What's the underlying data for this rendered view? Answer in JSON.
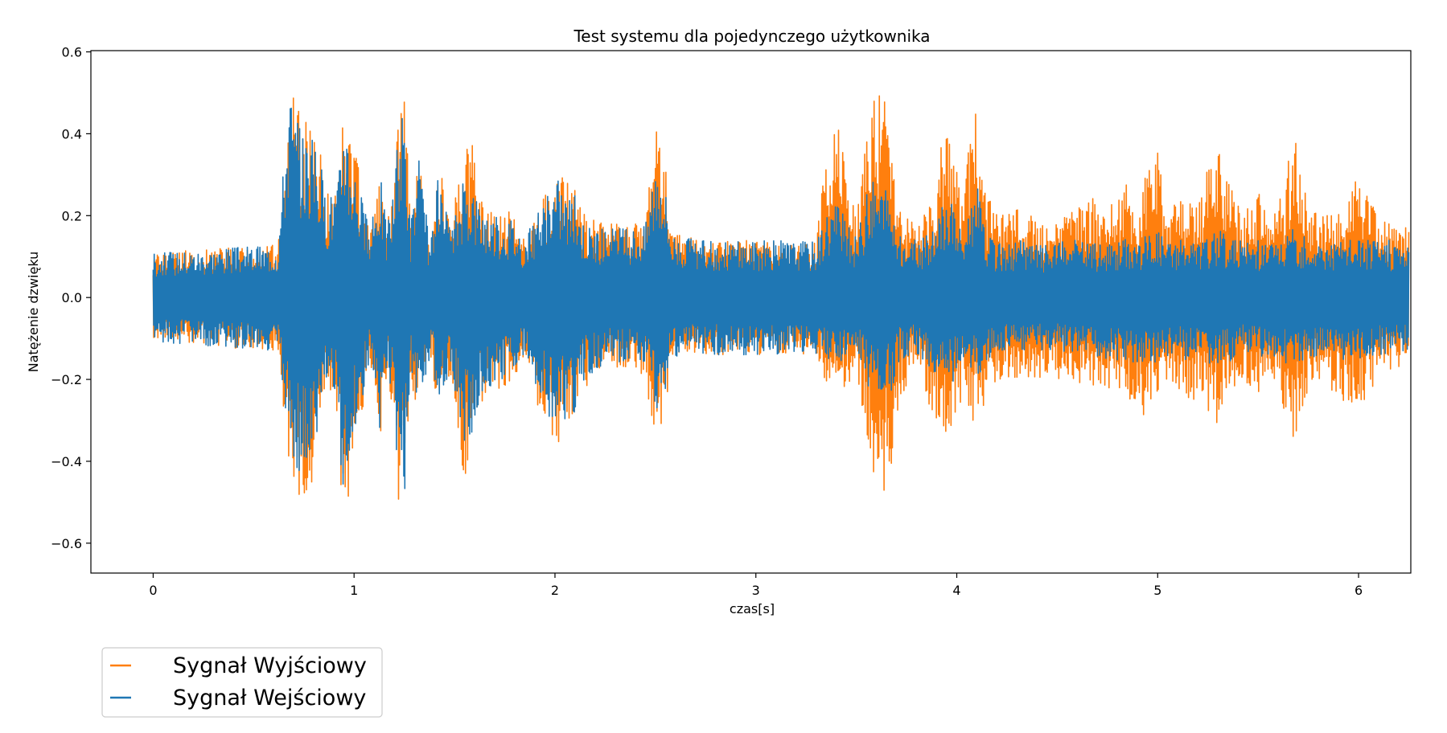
{
  "chart_data": {
    "type": "line",
    "title": "Test systemu dla pojedynczego użytkownika",
    "xlabel": "czas[s]",
    "ylabel": "Natężenie dzwięku",
    "xlim": [
      -0.31,
      6.26
    ],
    "ylim": [
      -0.673,
      0.603
    ],
    "xticks": [
      0,
      1,
      2,
      3,
      4,
      5,
      6
    ],
    "xtick_labels": [
      "0",
      "1",
      "2",
      "3",
      "4",
      "5",
      "6"
    ],
    "yticks": [
      -0.6,
      -0.4,
      -0.2,
      0.0,
      0.2,
      0.4,
      0.6
    ],
    "ytick_labels": [
      "−0.6",
      "−0.4",
      "−0.2",
      "0.0",
      "0.2",
      "0.4",
      "0.6"
    ],
    "grid": false,
    "legend_position": "lower-left, outside plot",
    "legend": [
      "Sygnał Wyjściowy",
      "Sygnał Wejściowy"
    ],
    "series": [
      {
        "name": "Sygnał Wyjściowy",
        "color": "#ff7f0e",
        "envelope_time": [
          0.0,
          0.3,
          0.62,
          0.68,
          0.7,
          0.74,
          0.78,
          0.82,
          0.86,
          0.92,
          0.95,
          0.98,
          1.02,
          1.08,
          1.13,
          1.16,
          1.19,
          1.22,
          1.25,
          1.28,
          1.32,
          1.38,
          1.42,
          1.48,
          1.55,
          1.58,
          1.62,
          1.7,
          1.78,
          1.85,
          1.95,
          2.02,
          2.05,
          2.1,
          2.15,
          2.25,
          2.35,
          2.45,
          2.5,
          2.53,
          2.58,
          2.7,
          2.9,
          3.1,
          3.3,
          3.36,
          3.4,
          3.45,
          3.5,
          3.55,
          3.58,
          3.6,
          3.63,
          3.67,
          3.72,
          3.8,
          3.88,
          3.92,
          3.97,
          4.0,
          4.03,
          4.07,
          4.1,
          4.15,
          4.22,
          4.3,
          4.45,
          4.55,
          4.65,
          4.75,
          4.85,
          4.9,
          4.95,
          5.0,
          5.05,
          5.1,
          5.2,
          5.26,
          5.3,
          5.35,
          5.42,
          5.5,
          5.55,
          5.6,
          5.64,
          5.68,
          5.72,
          5.8,
          5.9,
          6.0,
          6.1,
          6.2,
          6.25
        ],
        "envelope_max": [
          0.11,
          0.12,
          0.13,
          0.45,
          0.5,
          0.48,
          0.44,
          0.4,
          0.25,
          0.28,
          0.54,
          0.4,
          0.35,
          0.15,
          0.33,
          0.18,
          0.25,
          0.42,
          0.55,
          0.18,
          0.35,
          0.13,
          0.34,
          0.18,
          0.36,
          0.45,
          0.25,
          0.2,
          0.22,
          0.15,
          0.25,
          0.32,
          0.28,
          0.28,
          0.2,
          0.18,
          0.18,
          0.2,
          0.43,
          0.45,
          0.16,
          0.15,
          0.14,
          0.14,
          0.14,
          0.42,
          0.48,
          0.32,
          0.2,
          0.4,
          0.52,
          0.5,
          0.5,
          0.42,
          0.22,
          0.18,
          0.23,
          0.4,
          0.48,
          0.33,
          0.22,
          0.42,
          0.5,
          0.25,
          0.2,
          0.22,
          0.18,
          0.2,
          0.25,
          0.22,
          0.3,
          0.2,
          0.35,
          0.37,
          0.2,
          0.25,
          0.22,
          0.35,
          0.43,
          0.3,
          0.2,
          0.26,
          0.2,
          0.25,
          0.3,
          0.43,
          0.28,
          0.2,
          0.22,
          0.3,
          0.2,
          0.18,
          0.17
        ],
        "envelope_min": [
          -0.11,
          -0.12,
          -0.13,
          -0.42,
          -0.47,
          -0.5,
          -0.47,
          -0.4,
          -0.2,
          -0.3,
          -0.62,
          -0.45,
          -0.35,
          -0.15,
          -0.35,
          -0.2,
          -0.28,
          -0.5,
          -0.55,
          -0.2,
          -0.3,
          -0.14,
          -0.28,
          -0.2,
          -0.45,
          -0.4,
          -0.28,
          -0.25,
          -0.2,
          -0.16,
          -0.32,
          -0.36,
          -0.32,
          -0.3,
          -0.22,
          -0.17,
          -0.17,
          -0.2,
          -0.35,
          -0.35,
          -0.16,
          -0.14,
          -0.14,
          -0.14,
          -0.14,
          -0.23,
          -0.2,
          -0.25,
          -0.2,
          -0.32,
          -0.5,
          -0.45,
          -0.48,
          -0.47,
          -0.24,
          -0.18,
          -0.3,
          -0.35,
          -0.38,
          -0.32,
          -0.22,
          -0.3,
          -0.35,
          -0.25,
          -0.2,
          -0.2,
          -0.2,
          -0.2,
          -0.22,
          -0.22,
          -0.25,
          -0.3,
          -0.28,
          -0.26,
          -0.22,
          -0.25,
          -0.25,
          -0.3,
          -0.32,
          -0.24,
          -0.2,
          -0.25,
          -0.2,
          -0.22,
          -0.3,
          -0.35,
          -0.28,
          -0.2,
          -0.25,
          -0.28,
          -0.2,
          -0.18,
          -0.17
        ]
      },
      {
        "name": "Sygnał Wejściowy",
        "color": "#1f77b4",
        "envelope_time": [
          0.0,
          0.3,
          0.62,
          0.68,
          0.7,
          0.74,
          0.78,
          0.82,
          0.86,
          0.92,
          0.95,
          0.98,
          1.02,
          1.08,
          1.13,
          1.16,
          1.19,
          1.22,
          1.25,
          1.28,
          1.32,
          1.38,
          1.42,
          1.48,
          1.55,
          1.58,
          1.62,
          1.7,
          1.78,
          1.85,
          1.95,
          2.02,
          2.05,
          2.1,
          2.15,
          2.25,
          2.35,
          2.45,
          2.5,
          2.53,
          2.58,
          2.7,
          2.9,
          3.1,
          3.3,
          3.36,
          3.4,
          3.45,
          3.5,
          3.55,
          3.58,
          3.6,
          3.63,
          3.67,
          3.72,
          3.8,
          3.88,
          3.92,
          3.97,
          4.0,
          4.03,
          4.07,
          4.1,
          4.15,
          4.22,
          4.3,
          4.45,
          4.55,
          4.65,
          4.75,
          4.85,
          4.9,
          4.95,
          5.0,
          5.05,
          5.1,
          5.2,
          5.26,
          5.3,
          5.35,
          5.42,
          5.5,
          5.55,
          5.6,
          5.64,
          5.68,
          5.72,
          5.8,
          5.9,
          6.0,
          6.1,
          6.2,
          6.25
        ],
        "envelope_max": [
          0.11,
          0.12,
          0.13,
          0.55,
          0.45,
          0.42,
          0.4,
          0.38,
          0.25,
          0.28,
          0.5,
          0.38,
          0.3,
          0.15,
          0.32,
          0.18,
          0.25,
          0.4,
          0.5,
          0.18,
          0.35,
          0.13,
          0.3,
          0.16,
          0.3,
          0.3,
          0.24,
          0.2,
          0.2,
          0.15,
          0.24,
          0.3,
          0.26,
          0.25,
          0.18,
          0.17,
          0.17,
          0.18,
          0.35,
          0.34,
          0.16,
          0.14,
          0.14,
          0.14,
          0.14,
          0.22,
          0.25,
          0.18,
          0.15,
          0.25,
          0.3,
          0.28,
          0.28,
          0.24,
          0.15,
          0.14,
          0.16,
          0.22,
          0.26,
          0.2,
          0.15,
          0.25,
          0.28,
          0.15,
          0.13,
          0.14,
          0.13,
          0.14,
          0.14,
          0.13,
          0.15,
          0.14,
          0.16,
          0.17,
          0.14,
          0.14,
          0.14,
          0.15,
          0.17,
          0.15,
          0.14,
          0.14,
          0.14,
          0.14,
          0.15,
          0.17,
          0.15,
          0.14,
          0.14,
          0.15,
          0.14,
          0.14,
          0.13
        ],
        "envelope_min": [
          -0.11,
          -0.12,
          -0.13,
          -0.38,
          -0.42,
          -0.45,
          -0.45,
          -0.38,
          -0.2,
          -0.28,
          -0.55,
          -0.4,
          -0.3,
          -0.15,
          -0.33,
          -0.18,
          -0.25,
          -0.45,
          -0.5,
          -0.18,
          -0.28,
          -0.14,
          -0.25,
          -0.18,
          -0.38,
          -0.35,
          -0.26,
          -0.22,
          -0.18,
          -0.15,
          -0.28,
          -0.32,
          -0.3,
          -0.28,
          -0.2,
          -0.16,
          -0.16,
          -0.18,
          -0.28,
          -0.28,
          -0.15,
          -0.14,
          -0.14,
          -0.14,
          -0.14,
          -0.16,
          -0.15,
          -0.16,
          -0.14,
          -0.2,
          -0.26,
          -0.25,
          -0.26,
          -0.24,
          -0.15,
          -0.14,
          -0.18,
          -0.2,
          -0.22,
          -0.2,
          -0.15,
          -0.18,
          -0.2,
          -0.15,
          -0.13,
          -0.13,
          -0.13,
          -0.14,
          -0.15,
          -0.15,
          -0.16,
          -0.17,
          -0.16,
          -0.16,
          -0.15,
          -0.15,
          -0.16,
          -0.17,
          -0.18,
          -0.16,
          -0.14,
          -0.15,
          -0.14,
          -0.15,
          -0.16,
          -0.18,
          -0.16,
          -0.14,
          -0.15,
          -0.16,
          -0.14,
          -0.14,
          -0.13
        ]
      }
    ]
  }
}
